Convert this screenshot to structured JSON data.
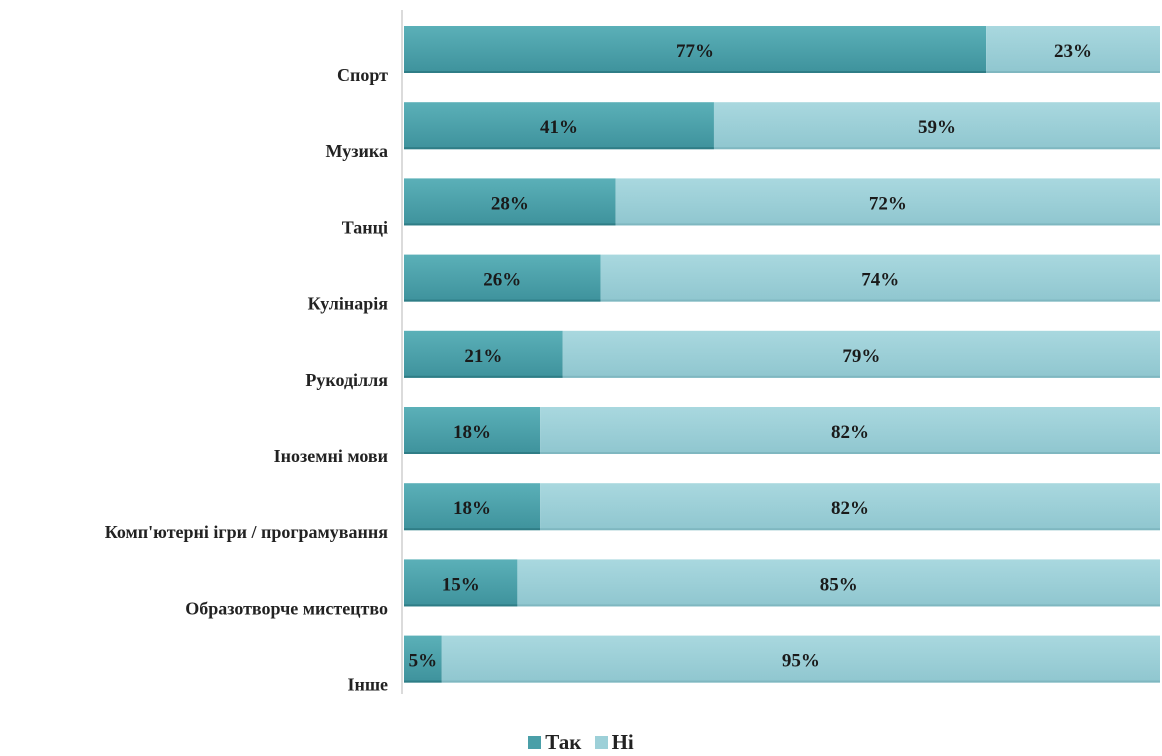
{
  "chart_data": {
    "type": "bar",
    "orientation": "horizontal",
    "stacked": true,
    "normalized_percent": true,
    "categories": [
      "Спорт",
      "Музика",
      "Танці",
      "Кулінарія",
      "Рукоділля",
      "Іноземні мови",
      "Комп'ютерні ігри / програмування",
      "Образотворче мистецтво",
      "Інше"
    ],
    "series": [
      {
        "name": "Так",
        "color": "#4a9fa8",
        "values": [
          77,
          41,
          28,
          26,
          21,
          18,
          18,
          15,
          5
        ],
        "labels": [
          "77%",
          "41%",
          "28%",
          "26%",
          "21%",
          "18%",
          "18%",
          "15%",
          "5%"
        ]
      },
      {
        "name": "Ні",
        "color": "#9dd0d8",
        "values": [
          23,
          59,
          72,
          74,
          79,
          82,
          82,
          85,
          95
        ],
        "labels": [
          "23%",
          "59%",
          "72%",
          "74%",
          "79%",
          "82%",
          "82%",
          "85%",
          "95%"
        ]
      }
    ],
    "xlim": [
      0,
      100
    ],
    "grid": false,
    "legend_position": "bottom"
  }
}
